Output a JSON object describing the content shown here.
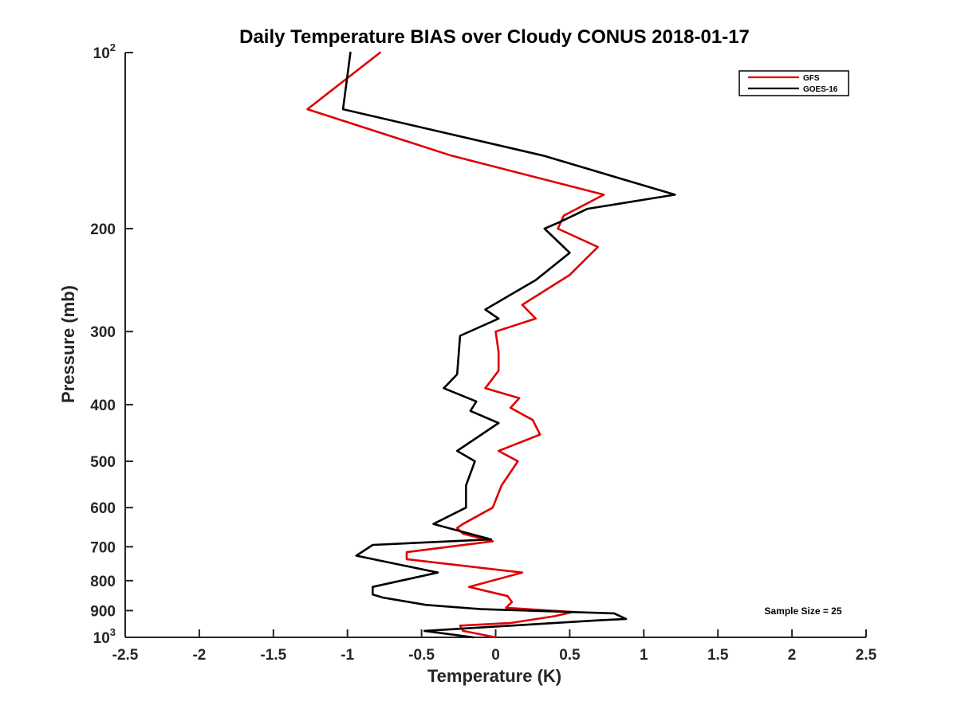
{
  "chart_data": {
    "type": "line",
    "title": "Daily Temperature BIAS over Cloudy CONUS 2018-01-17",
    "xlabel": "Temperature (K)",
    "ylabel": "Pressure (mb)",
    "xlim": [
      -2.5,
      2.5
    ],
    "ylim": [
      100,
      1000
    ],
    "y_scale": "log",
    "y_reversed": true,
    "grid": false,
    "legend_position": "top-right",
    "x_ticks": [
      {
        "value": -2.5,
        "label": "-2.5"
      },
      {
        "value": -2,
        "label": "-2"
      },
      {
        "value": -1.5,
        "label": "-1.5"
      },
      {
        "value": -1,
        "label": "-1"
      },
      {
        "value": -0.5,
        "label": "-0.5"
      },
      {
        "value": 0,
        "label": "0"
      },
      {
        "value": 0.5,
        "label": "0.5"
      },
      {
        "value": 1,
        "label": "1"
      },
      {
        "value": 1.5,
        "label": "1.5"
      },
      {
        "value": 2,
        "label": "2"
      },
      {
        "value": 2.5,
        "label": "2.5"
      }
    ],
    "y_ticks": [
      {
        "value": 100,
        "label": "10",
        "sup": "2"
      },
      {
        "value": 200,
        "label": "200"
      },
      {
        "value": 300,
        "label": "300"
      },
      {
        "value": 400,
        "label": "400"
      },
      {
        "value": 500,
        "label": "500"
      },
      {
        "value": 600,
        "label": "600"
      },
      {
        "value": 700,
        "label": "700"
      },
      {
        "value": 800,
        "label": "800"
      },
      {
        "value": 900,
        "label": "900"
      },
      {
        "value": 1000,
        "label": "10",
        "sup": "3"
      }
    ],
    "series": [
      {
        "name": "GFS",
        "color": "#e00000",
        "points": [
          {
            "x": -0.78,
            "y": 100
          },
          {
            "x": -1.27,
            "y": 125
          },
          {
            "x": -0.3,
            "y": 150
          },
          {
            "x": 0.73,
            "y": 175
          },
          {
            "x": 0.46,
            "y": 190
          },
          {
            "x": 0.42,
            "y": 200
          },
          {
            "x": 0.69,
            "y": 215
          },
          {
            "x": 0.5,
            "y": 240
          },
          {
            "x": 0.18,
            "y": 270
          },
          {
            "x": 0.27,
            "y": 285
          },
          {
            "x": 0.0,
            "y": 300
          },
          {
            "x": 0.02,
            "y": 325
          },
          {
            "x": 0.02,
            "y": 350
          },
          {
            "x": -0.07,
            "y": 375
          },
          {
            "x": 0.16,
            "y": 390
          },
          {
            "x": 0.1,
            "y": 405
          },
          {
            "x": 0.25,
            "y": 425
          },
          {
            "x": 0.3,
            "y": 450
          },
          {
            "x": 0.02,
            "y": 480
          },
          {
            "x": 0.15,
            "y": 500
          },
          {
            "x": 0.04,
            "y": 550
          },
          {
            "x": -0.02,
            "y": 600
          },
          {
            "x": -0.22,
            "y": 640
          },
          {
            "x": -0.26,
            "y": 650
          },
          {
            "x": -0.22,
            "y": 665
          },
          {
            "x": -0.02,
            "y": 685
          },
          {
            "x": -0.6,
            "y": 715
          },
          {
            "x": -0.6,
            "y": 735
          },
          {
            "x": 0.18,
            "y": 775
          },
          {
            "x": -0.18,
            "y": 820
          },
          {
            "x": 0.08,
            "y": 850
          },
          {
            "x": 0.11,
            "y": 870
          },
          {
            "x": 0.07,
            "y": 890
          },
          {
            "x": 0.52,
            "y": 905
          },
          {
            "x": 0.4,
            "y": 920
          },
          {
            "x": 0.1,
            "y": 945
          },
          {
            "x": -0.24,
            "y": 955
          },
          {
            "x": -0.22,
            "y": 975
          },
          {
            "x": 0.0,
            "y": 1000
          }
        ]
      },
      {
        "name": "GOES-16",
        "color": "#000000",
        "points": [
          {
            "x": -0.98,
            "y": 100
          },
          {
            "x": -1.03,
            "y": 125
          },
          {
            "x": 0.32,
            "y": 150
          },
          {
            "x": 1.21,
            "y": 175
          },
          {
            "x": 0.62,
            "y": 185
          },
          {
            "x": 0.43,
            "y": 195
          },
          {
            "x": 0.33,
            "y": 200
          },
          {
            "x": 0.5,
            "y": 220
          },
          {
            "x": 0.27,
            "y": 245
          },
          {
            "x": -0.07,
            "y": 275
          },
          {
            "x": 0.02,
            "y": 285
          },
          {
            "x": -0.24,
            "y": 305
          },
          {
            "x": -0.25,
            "y": 330
          },
          {
            "x": -0.26,
            "y": 355
          },
          {
            "x": -0.35,
            "y": 375
          },
          {
            "x": -0.13,
            "y": 395
          },
          {
            "x": -0.17,
            "y": 410
          },
          {
            "x": 0.02,
            "y": 430
          },
          {
            "x": -0.26,
            "y": 480
          },
          {
            "x": -0.14,
            "y": 500
          },
          {
            "x": -0.2,
            "y": 550
          },
          {
            "x": -0.2,
            "y": 600
          },
          {
            "x": -0.42,
            "y": 640
          },
          {
            "x": -0.03,
            "y": 680
          },
          {
            "x": -0.83,
            "y": 695
          },
          {
            "x": -0.94,
            "y": 725
          },
          {
            "x": -0.39,
            "y": 775
          },
          {
            "x": -0.83,
            "y": 820
          },
          {
            "x": -0.83,
            "y": 845
          },
          {
            "x": -0.76,
            "y": 855
          },
          {
            "x": -0.47,
            "y": 880
          },
          {
            "x": -0.1,
            "y": 895
          },
          {
            "x": 0.8,
            "y": 910
          },
          {
            "x": 0.88,
            "y": 930
          },
          {
            "x": 0.7,
            "y": 935
          },
          {
            "x": -0.48,
            "y": 975
          },
          {
            "x": -0.15,
            "y": 1000
          }
        ]
      }
    ],
    "annotations": [
      {
        "text": "Sample Size = 25"
      }
    ]
  }
}
